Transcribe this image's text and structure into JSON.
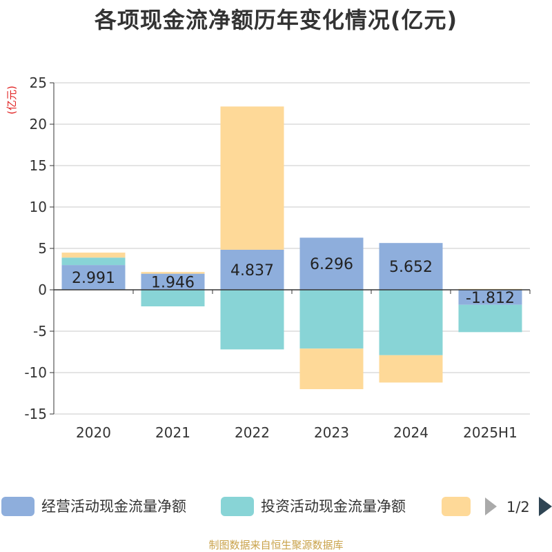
{
  "chart_data": {
    "type": "bar",
    "stacked": true,
    "title": "各项现金流净额历年变化情况(亿元)",
    "ylabel": "(亿元)",
    "categories": [
      "2020",
      "2021",
      "2022",
      "2023",
      "2024",
      "2025H1"
    ],
    "ylim": [
      -15,
      25
    ],
    "yticks": [
      25,
      20,
      15,
      10,
      5,
      0,
      -5,
      -10,
      -15
    ],
    "grid": true,
    "legend_position": "bottom",
    "series": [
      {
        "name": "经营活动现金流量净额",
        "color": "#8eaedc",
        "values": [
          2.991,
          1.946,
          4.837,
          6.296,
          5.652,
          -1.812
        ],
        "labels": [
          "2.991",
          "1.946",
          "4.837",
          "6.296",
          "5.652",
          "-1.812"
        ]
      },
      {
        "name": "投资活动现金流量净额",
        "color": "#88d4d6",
        "values": [
          0.9,
          -2.0,
          -7.2,
          -7.1,
          -7.9,
          -3.3
        ]
      },
      {
        "name": "",
        "color": "#fed998",
        "values": [
          0.6,
          0.2,
          17.3,
          -4.9,
          -3.3,
          0.1
        ]
      }
    ]
  },
  "legend_pager": {
    "label": "1/2"
  },
  "source": "制图数据来自恒生聚源数据库"
}
